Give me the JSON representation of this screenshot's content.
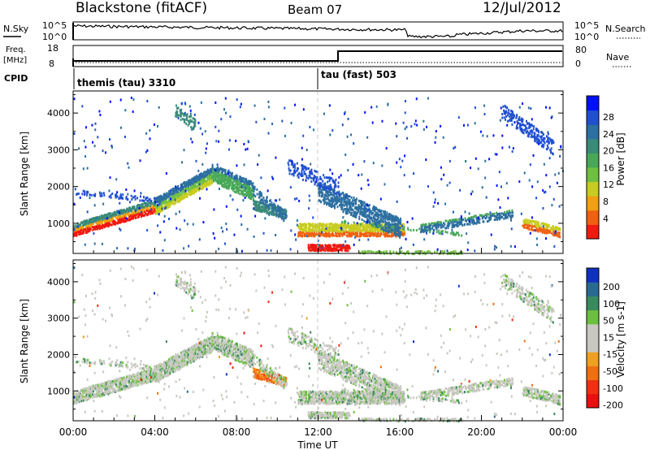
{
  "header": {
    "title": "Blackstone (fitACF)",
    "beam": "Beam 07",
    "date": "12/Jul/2012"
  },
  "status_panel": {
    "nsky_label": "N.Sky",
    "nsearch_label": "N.Search",
    "nsky_ticks": [
      "10^5",
      "10^0"
    ],
    "nsearch_ticks": [
      "10^5",
      "10^0"
    ],
    "freq_label": "Freq.",
    "freq_unit": "[MHz]",
    "freq_ticks": [
      "18",
      "8"
    ],
    "nave_label": "Nave",
    "nave_ticks": [
      "80",
      "0"
    ],
    "cpid_label": "CPID",
    "cpid_segments": [
      {
        "name": "themis (tau) 3310",
        "start_hour": 0
      },
      {
        "name": "tau (fast) 503",
        "start_hour": 12
      }
    ]
  },
  "chart_data": [
    {
      "type": "heatmap",
      "panel": "power",
      "ylabel": "Slant Range [km]",
      "ylim": [
        180,
        4600
      ],
      "y_ticks": [
        1000,
        2000,
        3000,
        4000
      ],
      "colorbar_label": "Power [dB]",
      "colorbar_ticks": [
        "28",
        "24",
        "20",
        "16",
        "12",
        "8",
        "4"
      ],
      "colorbar_colors": [
        "#0010ff",
        "#2050d0",
        "#2c6fa0",
        "#3a8a78",
        "#48a858",
        "#70c040",
        "#c8cc20",
        "#f0a010",
        "#f06010",
        "#ef1a10"
      ]
    },
    {
      "type": "heatmap",
      "panel": "velocity",
      "xlabel": "Time UT",
      "ylabel": "Slant Range [km]",
      "ylim": [
        180,
        4600
      ],
      "xlim": [
        0,
        24
      ],
      "y_ticks": [
        1000,
        2000,
        3000,
        4000
      ],
      "x_tick_labels": [
        "00:00",
        "04:00",
        "08:00",
        "12:00",
        "16:00",
        "20:00",
        "00:00"
      ],
      "colorbar_label": "Velocity [m s-1]",
      "colorbar_ticks": [
        "200",
        "100",
        "50",
        "15",
        "-15",
        "-50",
        "-100",
        "-200"
      ],
      "colorbar_colors": [
        "#1030c0",
        "#2a6a90",
        "#3a8a60",
        "#6cc040",
        "#c8c8c0",
        "#c8c8c0",
        "#f0a020",
        "#f07010",
        "#f03010",
        "#e81010"
      ]
    }
  ]
}
